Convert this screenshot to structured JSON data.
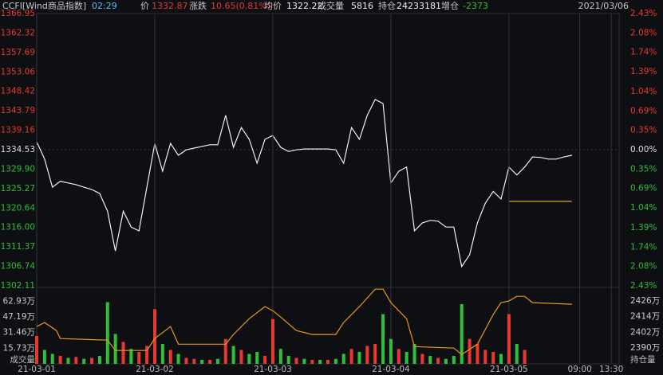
{
  "header": {
    "name": "CCFI[Wind商品指数]",
    "time": "02:29",
    "price_label": "价",
    "price": "1332.87",
    "change_label": "涨跌",
    "change": "10.65(0.81%)",
    "avg_label": "均价",
    "avg": "1322.22",
    "volume_label": "成交量",
    "volume": "5816",
    "oi_label": "持仓",
    "oi": "24233181",
    "oi_change_label": "增仓",
    "oi_change": "-2373",
    "date": "2021/03/06"
  },
  "chart_data": [
    {
      "type": "line",
      "xlim": [
        0,
        148
      ],
      "ylim": [
        1302.11,
        1366.95
      ],
      "yticks": [
        1366.95,
        1362.32,
        1357.69,
        1353.06,
        1348.42,
        1343.79,
        1339.16,
        1334.53,
        {
          "value": 1329.9,
          "label": "1329.90"
        },
        1325.27,
        1320.64,
        {
          "value": 1316,
          "label": "1316.00"
        },
        1311.37,
        1306.74,
        1302.11
      ],
      "y2lim": [
        -2.43,
        2.43
      ],
      "y2ticks": [
        {
          "value": 2.43,
          "label": "2.43%"
        },
        {
          "value": 2.08,
          "label": "2.08%"
        },
        {
          "value": 1.74,
          "label": "1.74%"
        },
        {
          "value": 1.39,
          "label": "1.39%"
        },
        {
          "value": 1.04,
          "label": "1.04%"
        },
        {
          "value": 0.69,
          "label": "0.69%"
        },
        {
          "value": 0.35,
          "label": "0.35%"
        },
        {
          "value": 0,
          "label": "0.00%"
        },
        {
          "value": -0.35,
          "label": "0.35%"
        },
        {
          "value": -0.69,
          "label": "0.69%"
        },
        {
          "value": -1.04,
          "label": "1.04%"
        },
        {
          "value": -1.39,
          "label": "1.39%"
        },
        {
          "value": -1.74,
          "label": "1.74%"
        },
        {
          "value": -2.08,
          "label": "2.08%"
        },
        {
          "value": -2.43,
          "label": "2.43%"
        }
      ],
      "series": [
        {
          "name": "价",
          "color": "#f0f0f0",
          "x": [
            0,
            2,
            4,
            6,
            8,
            10,
            12,
            14,
            16,
            18,
            20,
            22,
            24,
            26,
            28,
            30,
            32,
            34,
            36,
            38,
            40,
            42,
            44,
            46,
            48,
            50,
            52,
            54,
            56,
            58,
            60,
            62,
            64,
            66,
            68,
            70,
            72,
            74,
            76,
            78,
            80,
            82,
            84,
            86,
            88,
            90,
            92,
            94,
            96,
            98,
            100,
            102,
            104,
            106,
            108,
            110,
            112,
            114,
            116,
            118,
            120,
            122,
            124,
            126,
            128,
            130,
            132,
            134,
            136
          ],
          "values": [
            1336.4,
            1332.3,
            1325.6,
            1327.0,
            1326.6,
            1326.2,
            1325.6,
            1325.05,
            1324.1,
            1319.9,
            1310.4,
            1319.9,
            1316.1,
            1315.2,
            1325.6,
            1336.0,
            1329.4,
            1336.0,
            1333.2,
            1334.5,
            1334.9,
            1335.3,
            1335.7,
            1335.7,
            1342.7,
            1335.1,
            1339.8,
            1337.0,
            1331.3,
            1337.0,
            1337.9,
            1335.1,
            1334.1,
            1334.5,
            1334.7,
            1334.7,
            1334.7,
            1334.7,
            1334.5,
            1331.3,
            1339.8,
            1337.0,
            1342.7,
            1346.5,
            1345.5,
            1326.6,
            1329.4,
            1330.4,
            1315.2,
            1317.1,
            1317.7,
            1317.5,
            1316.1,
            1316.1,
            1306.7,
            1309.5,
            1317.1,
            1321.8,
            1324.6,
            1322.8,
            1330.4,
            1328.5,
            1330.4,
            1332.8,
            1332.7,
            1332.3,
            1332.3,
            1332.8,
            1333.2
          ]
        },
        {
          "name": "均价",
          "color": "#d9a82e",
          "x": [
            120,
            136
          ],
          "values": [
            1322.22,
            1322.22
          ]
        }
      ]
    },
    {
      "type": "bar",
      "xlim": [
        0,
        148
      ],
      "ylim": [
        0,
        76
      ],
      "yticks": [
        {
          "value": 62.93,
          "label": "62.93万"
        },
        {
          "value": 47.19,
          "label": "47.19万"
        },
        {
          "value": 31.46,
          "label": "31.46万"
        },
        {
          "value": 15.73,
          "label": "15.73万"
        }
      ],
      "ylabel": "成交量",
      "y2lim": [
        2378,
        2435.7
      ],
      "y2ticks": [
        {
          "value": 2426,
          "label": "2426万"
        },
        {
          "value": 2414,
          "label": "2414万"
        },
        {
          "value": 2402,
          "label": "2402万"
        },
        {
          "value": 2390,
          "label": "2390万"
        }
      ],
      "y2label": "持仓量",
      "xticks": [
        {
          "value": 0,
          "label": "21-03-01"
        },
        {
          "value": 30,
          "label": "21-03-02"
        },
        {
          "value": 60,
          "label": "21-03-03"
        },
        {
          "value": 90,
          "label": "21-03-04"
        },
        {
          "value": 120,
          "label": "21-03-05"
        },
        {
          "value": 138,
          "label": "09:00"
        },
        {
          "value": 146,
          "label": "13:30"
        }
      ],
      "series": [
        {
          "name": "成交量",
          "x": [
            0,
            2,
            4,
            6,
            8,
            10,
            12,
            14,
            16,
            18,
            20,
            22,
            24,
            26,
            28,
            30,
            32,
            34,
            36,
            38,
            40,
            42,
            44,
            46,
            48,
            50,
            52,
            54,
            56,
            58,
            60,
            62,
            64,
            66,
            68,
            70,
            72,
            74,
            76,
            78,
            80,
            82,
            84,
            86,
            88,
            90,
            92,
            94,
            96,
            98,
            100,
            102,
            104,
            106,
            108,
            110,
            112,
            114,
            116,
            118,
            120,
            122,
            124
          ],
          "values": [
            28,
            14,
            10,
            8,
            6,
            7,
            5,
            6,
            8,
            62,
            30,
            22,
            15,
            12,
            18,
            55,
            20,
            14,
            10,
            6,
            5,
            4,
            4,
            5,
            25,
            18,
            14,
            10,
            12,
            8,
            45,
            15,
            8,
            6,
            5,
            4,
            4,
            4,
            5,
            10,
            15,
            12,
            18,
            20,
            50,
            25,
            15,
            12,
            20,
            10,
            8,
            6,
            5,
            8,
            60,
            25,
            20,
            14,
            12,
            10,
            50,
            20,
            14
          ],
          "colors": [
            "#e8382f",
            "#2fbf3a",
            "#2fbf3a",
            "#e8382f",
            "#2fbf3a",
            "#e8382f",
            "#2fbf3a",
            "#e8382f",
            "#2fbf3a",
            "#2fbf3a",
            "#2fbf3a",
            "#e8382f",
            "#2fbf3a",
            "#e8382f",
            "#e8382f",
            "#e8382f",
            "#2fbf3a",
            "#e8382f",
            "#2fbf3a",
            "#e8382f",
            "#e8382f",
            "#2fbf3a",
            "#e8382f",
            "#2fbf3a",
            "#e8382f",
            "#2fbf3a",
            "#e8382f",
            "#2fbf3a",
            "#2fbf3a",
            "#e8382f",
            "#e8382f",
            "#2fbf3a",
            "#2fbf3a",
            "#e8382f",
            "#2fbf3a",
            "#e8382f",
            "#2fbf3a",
            "#e8382f",
            "#2fbf3a",
            "#2fbf3a",
            "#e8382f",
            "#2fbf3a",
            "#e8382f",
            "#e8382f",
            "#2fbf3a",
            "#2fbf3a",
            "#e8382f",
            "#2fbf3a",
            "#2fbf3a",
            "#e8382f",
            "#2fbf3a",
            "#e8382f",
            "#2fbf3a",
            "#2fbf3a",
            "#2fbf3a",
            "#e8382f",
            "#e8382f",
            "#e8382f",
            "#e8382f",
            "#2fbf3a",
            "#e8382f",
            "#2fbf3a",
            "#e8382f"
          ]
        },
        {
          "name": "持仓量",
          "color": "#e8961e",
          "axis": "y2",
          "x": [
            0,
            2,
            5,
            6,
            18,
            20,
            28,
            30,
            34,
            36,
            48,
            50,
            54,
            58,
            60,
            62,
            66,
            70,
            76,
            78,
            82,
            86,
            88,
            90,
            92,
            94,
            96,
            106,
            108,
            112,
            116,
            118,
            120,
            122,
            124,
            126,
            136
          ],
          "values": [
            2406.4,
            2409.5,
            2403.4,
            2397.3,
            2396.1,
            2388.2,
            2388.2,
            2397.3,
            2406.4,
            2393,
            2393,
            2400.4,
            2412.5,
            2421.7,
            2418.6,
            2413.7,
            2403.4,
            2400.4,
            2400.4,
            2409.5,
            2421.7,
            2435,
            2435,
            2424.7,
            2418.6,
            2412.5,
            2391.2,
            2390,
            2385.1,
            2393,
            2415.6,
            2424.7,
            2426,
            2429.5,
            2429.5,
            2424.7,
            2423.5
          ]
        }
      ]
    }
  ]
}
